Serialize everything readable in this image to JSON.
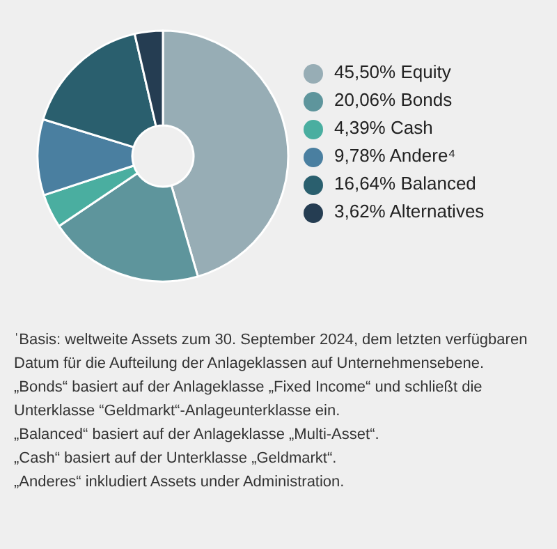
{
  "chart_data": {
    "type": "donut",
    "categories": [
      "Equity",
      "Bonds",
      "Cash",
      "Andere⁴",
      "Balanced",
      "Alternatives"
    ],
    "values": [
      45.5,
      20.06,
      4.39,
      9.78,
      16.64,
      3.62
    ],
    "value_labels": [
      "45,50%",
      "20,06%",
      "4,39%",
      "9,78%",
      "16,64%",
      "3,62%"
    ],
    "colors": [
      "#97adb5",
      "#5e959c",
      "#4aaea0",
      "#4a7fa0",
      "#2a5f6e",
      "#253d52"
    ],
    "legend": "right",
    "annotations": [
      "ˈBasis: weltweite Assets zum 30. September 2024, dem letzten verfügbaren Datum für die Aufteilung der Anlageklassen auf Unternehmensebene.",
      "„Bonds“ basiert auf der Anlageklasse „Fixed Income“ und schließt die Unterklasse “Geldmarkt“-Anlageunterklasse ein.",
      "„Balanced“ basiert auf der Anlageklasse „Multi-Asset“.",
      "„Cash“ basiert auf der Unterklasse „Geldmarkt“.",
      "„Anderes“ inkludiert Assets under Administration."
    ]
  }
}
